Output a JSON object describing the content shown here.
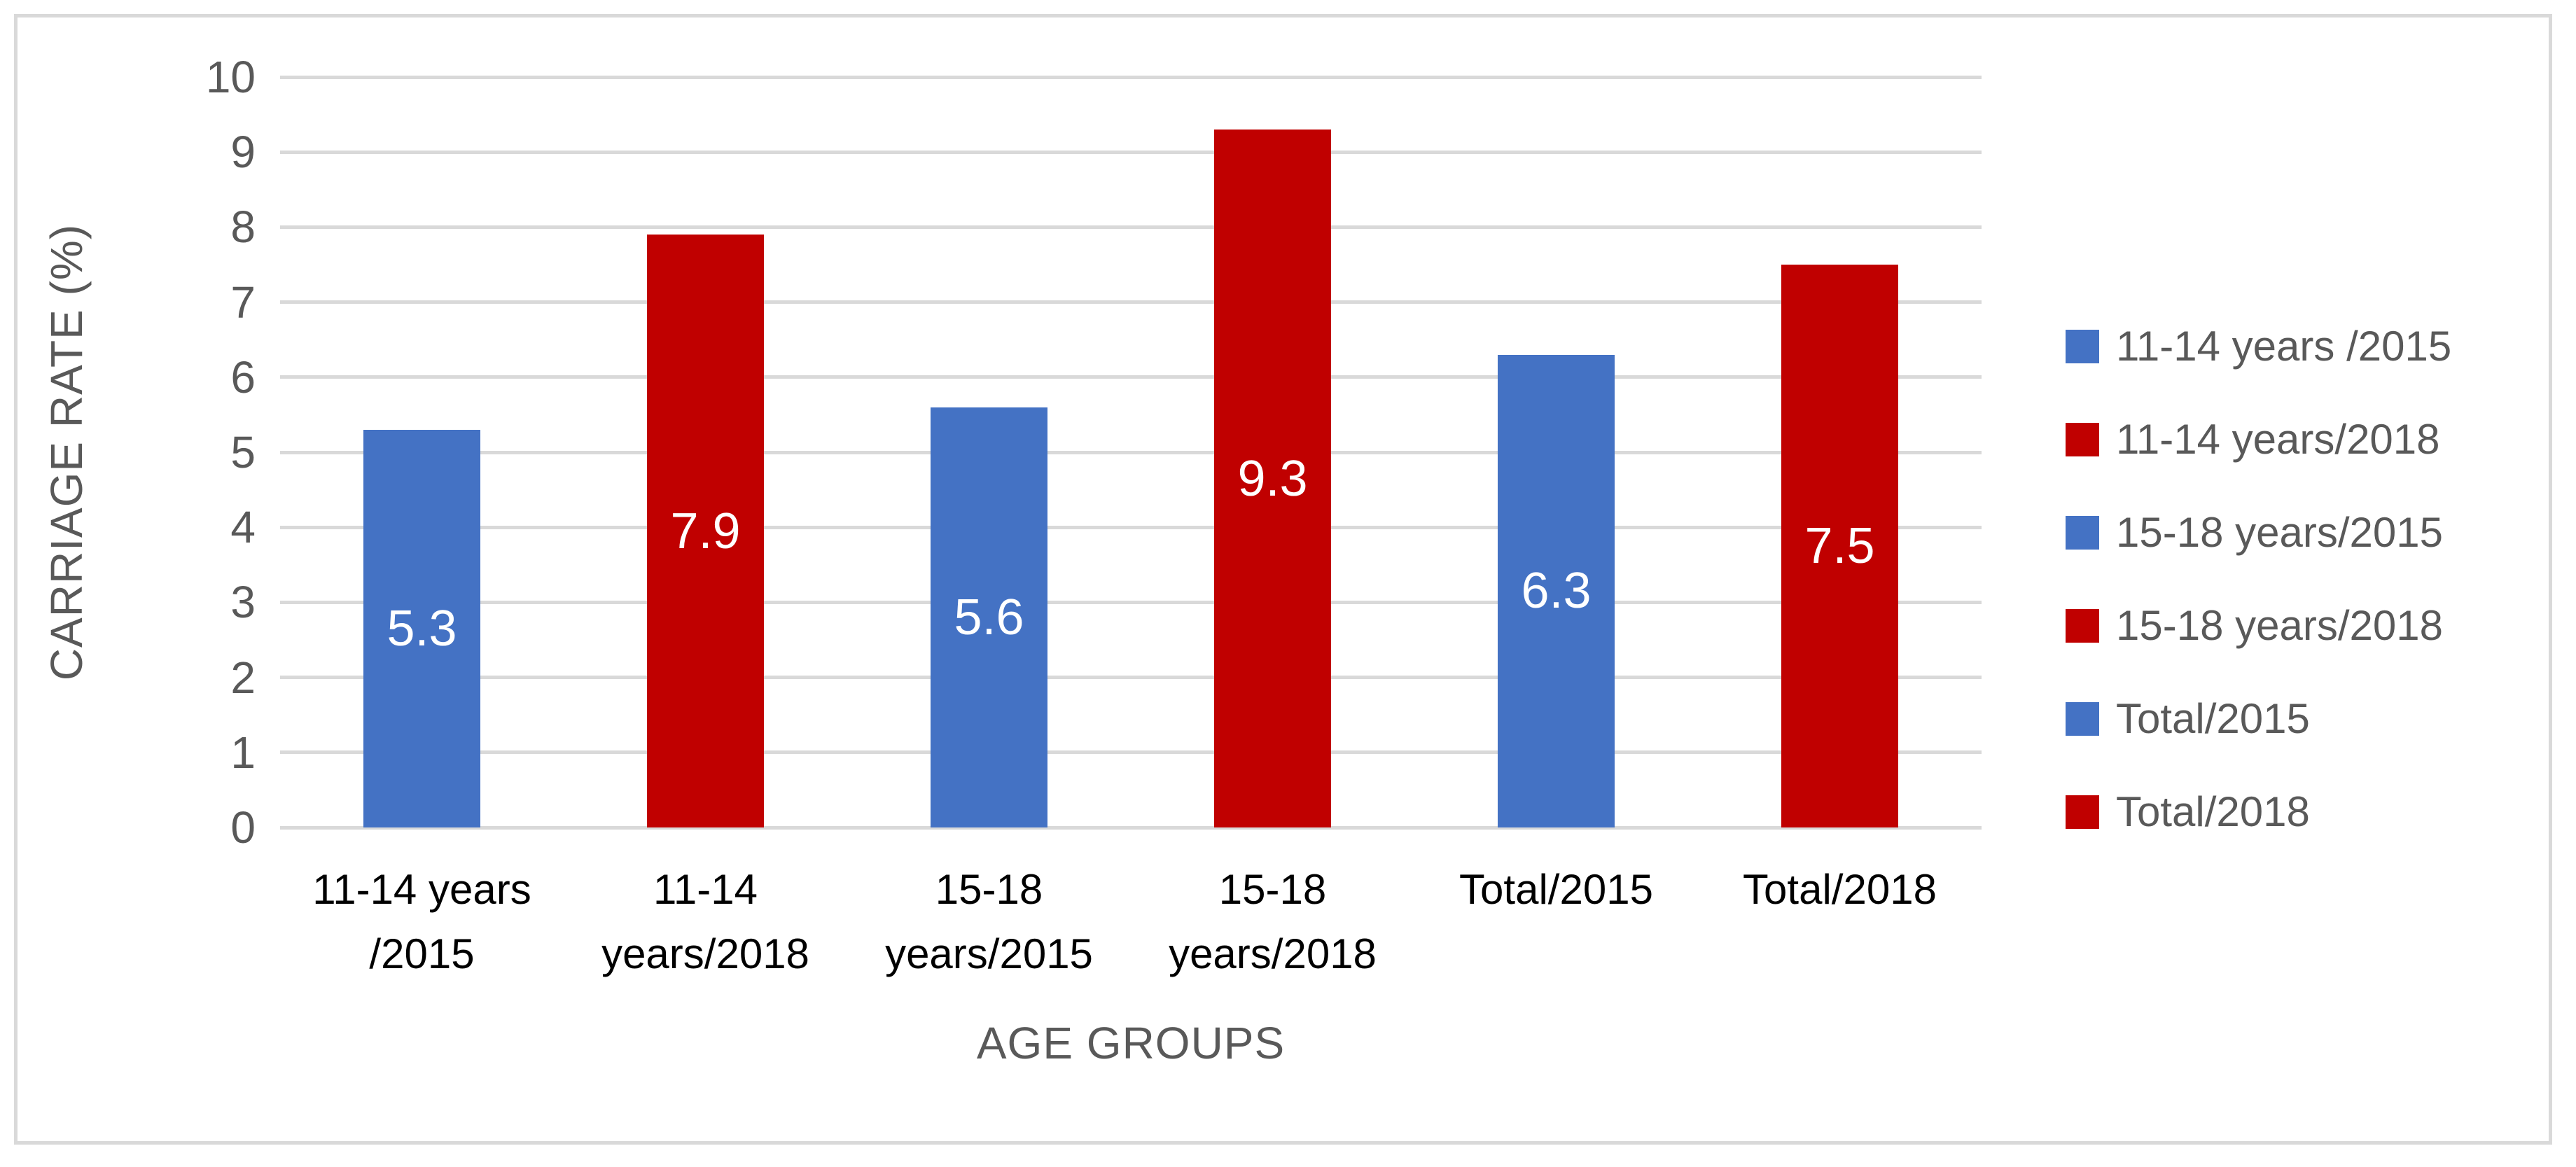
{
  "page": {
    "background": "#FFFFFF",
    "frame_border_color": "#D9D9D9"
  },
  "chart_data": {
    "type": "bar",
    "title": "",
    "xlabel": "AGE GROUPS",
    "ylabel": "CARRIAGE RATE (%)",
    "ylim": [
      0,
      10
    ],
    "ytick_step": 1,
    "ytick_labels": [
      "0",
      "1",
      "2",
      "3",
      "4",
      "5",
      "6",
      "7",
      "8",
      "9",
      "10"
    ],
    "grid": true,
    "legend_position": "right",
    "categories": [
      "11-14 years /2015",
      "11-14 years/2018",
      "15-18 years/2015",
      "15-18 years/2018",
      "Total/2015",
      "Total/2018"
    ],
    "category_label_lines": [
      [
        "11-14 years",
        "/2015"
      ],
      [
        "11-14",
        "years/2018"
      ],
      [
        "15-18",
        "years/2015"
      ],
      [
        "15-18",
        "years/2018"
      ],
      [
        "Total/2015"
      ],
      [
        "Total/2018"
      ]
    ],
    "values": [
      5.3,
      7.9,
      5.6,
      9.3,
      6.3,
      7.5
    ],
    "data_labels": [
      "5.3",
      "7.9",
      "5.6",
      "9.3",
      "6.3",
      "7.5"
    ],
    "bar_colors": [
      "#4472C4",
      "#C00000",
      "#4472C4",
      "#C00000",
      "#4472C4",
      "#C00000"
    ],
    "legend": [
      {
        "label": "11-14 years /2015",
        "color": "#4472C4"
      },
      {
        "label": "11-14 years/2018",
        "color": "#C00000"
      },
      {
        "label": "15-18 years/2015",
        "color": "#4472C4"
      },
      {
        "label": "15-18 years/2018",
        "color": "#C00000"
      },
      {
        "label": "Total/2015",
        "color": "#4472C4"
      },
      {
        "label": "Total/2018",
        "color": "#C00000"
      }
    ],
    "colors": {
      "grid": "#D9D9D9",
      "axis_text": "#595959",
      "category_text": "#000000",
      "data_label_text": "#FFFFFF",
      "blue_series": "#4472C4",
      "red_series": "#C00000"
    }
  }
}
